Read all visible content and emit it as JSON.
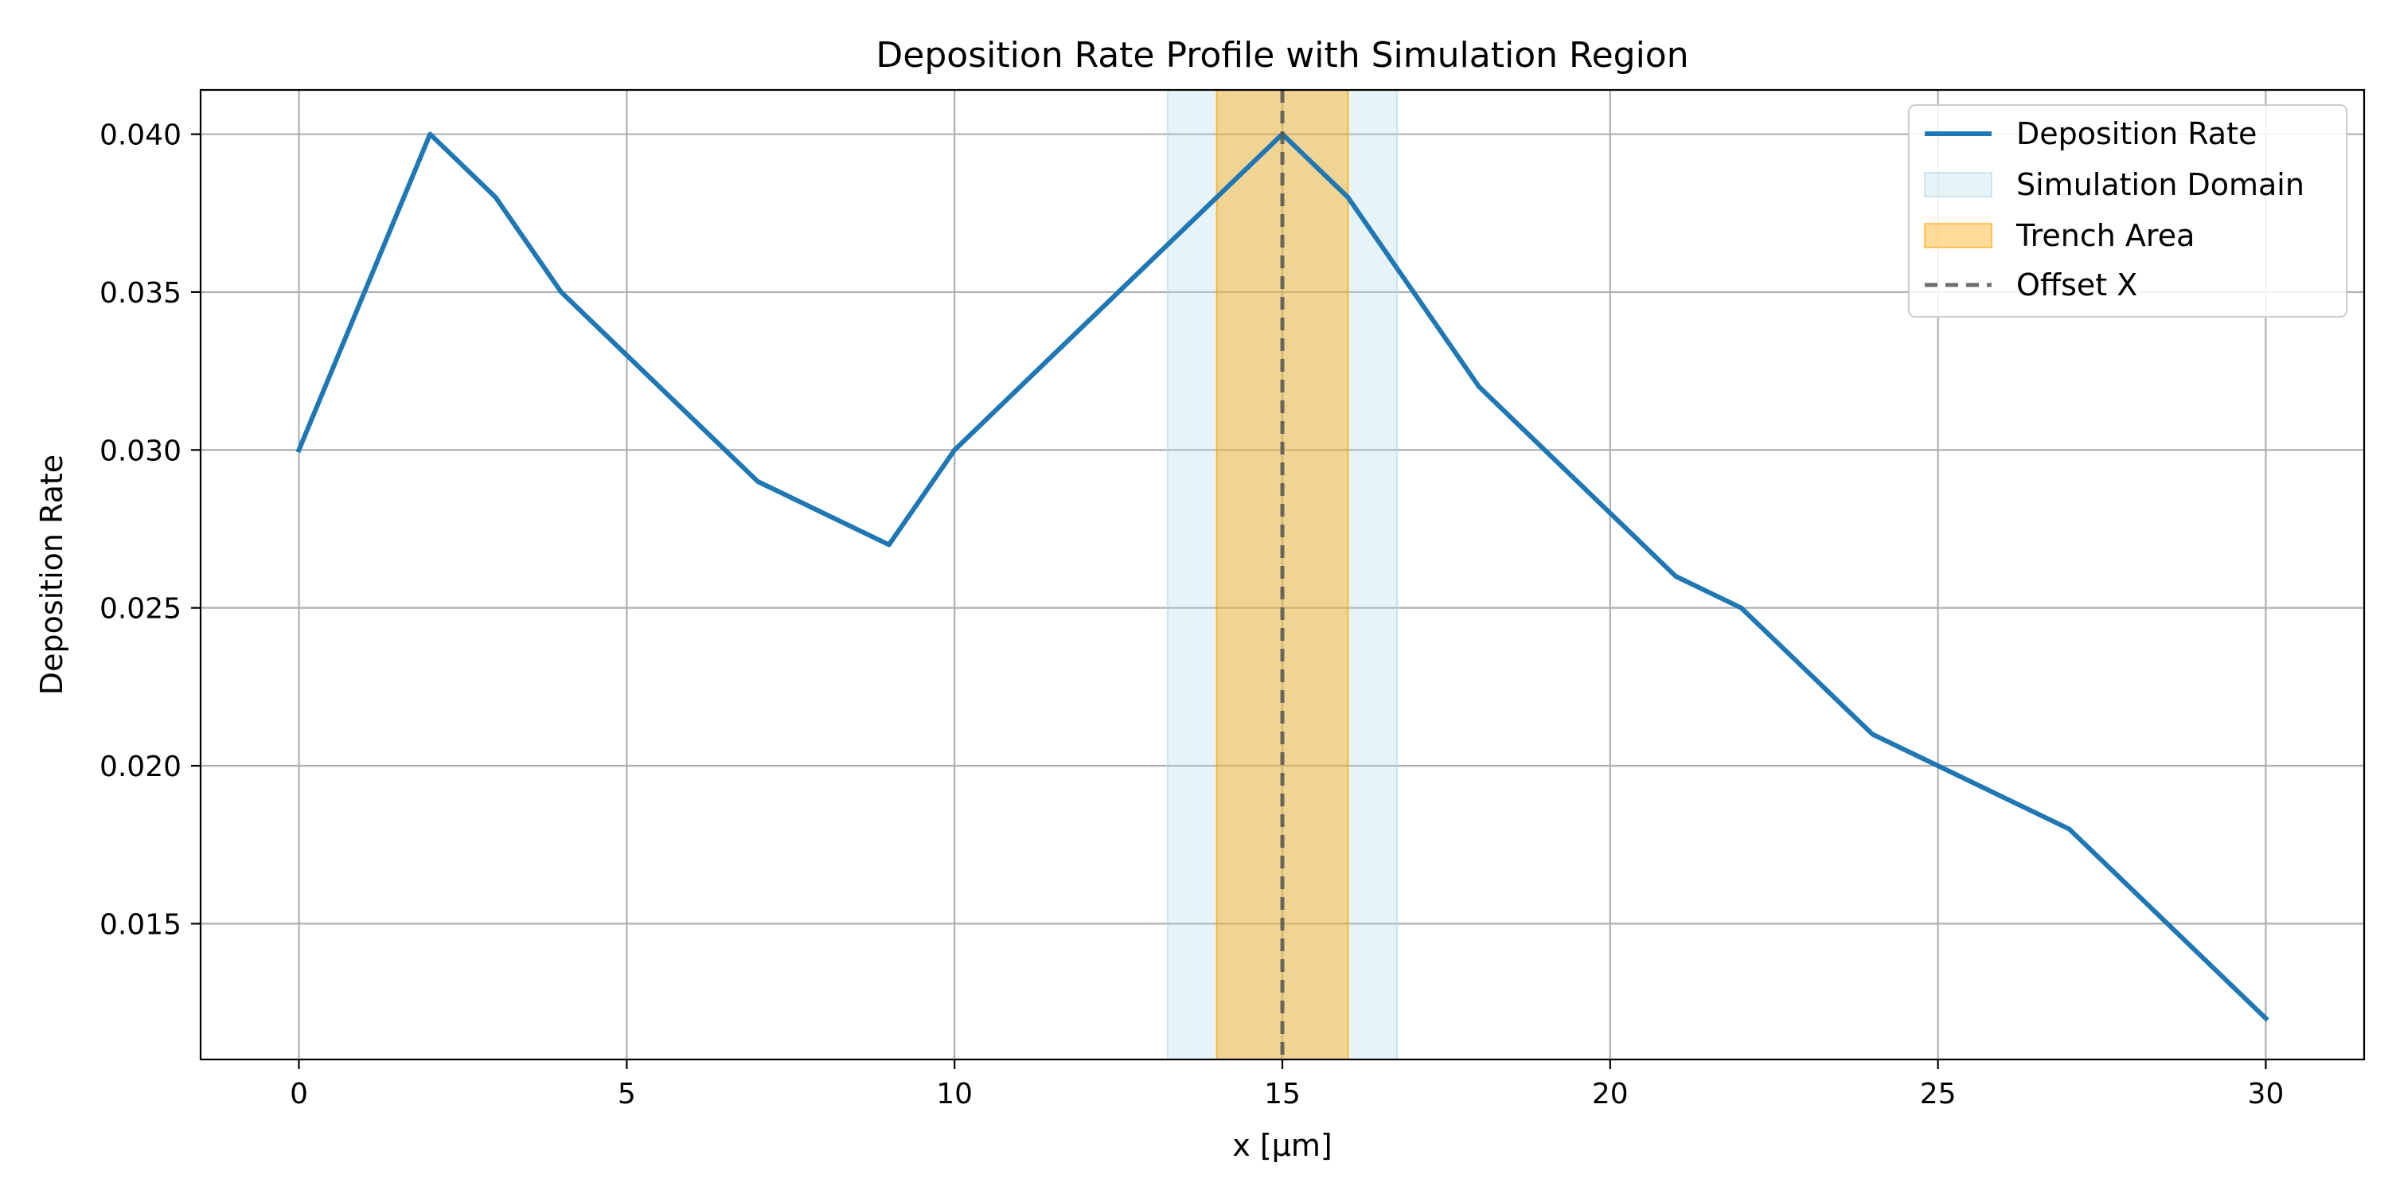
{
  "chart_data": {
    "type": "line",
    "title": "Deposition Rate Profile with Simulation Region",
    "xlabel": "x [µm]",
    "ylabel": "Deposition Rate",
    "xlim": [
      -1.5,
      31.5
    ],
    "ylim": [
      0.0107,
      0.0414
    ],
    "xticks": [
      0,
      5,
      10,
      15,
      20,
      25,
      30
    ],
    "xtick_labels": [
      "0",
      "5",
      "10",
      "15",
      "20",
      "25",
      "30"
    ],
    "yticks": [
      0.015,
      0.02,
      0.025,
      0.03,
      0.035,
      0.04
    ],
    "ytick_labels": [
      "0.015",
      "0.020",
      "0.025",
      "0.030",
      "0.035",
      "0.040"
    ],
    "grid": true,
    "legend_position": "top-right",
    "series": [
      {
        "name": "Deposition Rate",
        "color": "#1f77b4",
        "x": [
          0,
          2,
          3,
          4,
          7,
          9,
          10,
          15,
          16,
          18,
          21,
          22,
          24,
          27,
          30
        ],
        "y": [
          0.03,
          0.04,
          0.038,
          0.035,
          0.029,
          0.027,
          0.03,
          0.04,
          0.038,
          0.032,
          0.026,
          0.025,
          0.021,
          0.018,
          0.012
        ]
      }
    ],
    "regions": [
      {
        "name": "Simulation Domain",
        "x_range": [
          13.25,
          16.75
        ],
        "color": "#add8e6",
        "opacity": 0.3
      },
      {
        "name": "Trench Area",
        "x_range": [
          14.0,
          16.0
        ],
        "color": "#ffa500",
        "opacity": 0.4
      }
    ],
    "vlines": [
      {
        "name": "Offset X",
        "x": 15,
        "color": "#555555",
        "style": "dashed"
      }
    ]
  }
}
